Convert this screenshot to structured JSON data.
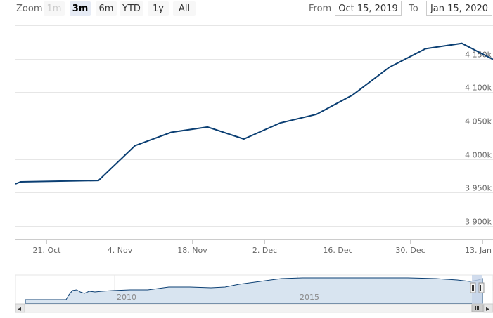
{
  "range_selector": {
    "zoom_label": "Zoom",
    "buttons": [
      {
        "label": "1m",
        "state": "disabled"
      },
      {
        "label": "3m",
        "state": "selected"
      },
      {
        "label": "6m",
        "state": "normal"
      },
      {
        "label": "YTD",
        "state": "normal"
      },
      {
        "label": "1y",
        "state": "normal"
      },
      {
        "label": "All",
        "state": "normal"
      }
    ],
    "from_label": "From",
    "from_value": "Oct 15, 2019",
    "to_label": "To",
    "to_value": "Jan 15, 2020"
  },
  "colors": {
    "series": "#0b3f73",
    "grid": "#e6e6e6",
    "axis_text": "#666666",
    "navigator_fill": "#d8e4f0",
    "navigator_mask": "#c6d3e8"
  },
  "chart_data": {
    "type": "line",
    "title": "",
    "xlabel": "",
    "ylabel": "",
    "ylim": [
      3880000,
      4200000
    ],
    "y_ticks": [
      3900000,
      3950000,
      4000000,
      4050000,
      4100000,
      4150000
    ],
    "y_tick_labels": [
      "3 900k",
      "3 950k",
      "4 000k",
      "4 050k",
      "4 100k",
      "4 150k"
    ],
    "x_range": [
      "2019-10-15",
      "2020-01-15"
    ],
    "x_ticks": [
      "2019-10-21",
      "2019-11-04",
      "2019-11-18",
      "2019-12-02",
      "2019-12-16",
      "2019-12-30",
      "2020-01-13"
    ],
    "x_tick_labels": [
      "21. Oct",
      "4. Nov",
      "18. Nov",
      "2. Dec",
      "16. Dec",
      "30. Dec",
      "13. Jan"
    ],
    "grid": true,
    "legend": "none",
    "series": [
      {
        "x": [
          "2019-10-15",
          "2019-10-16",
          "2019-10-31",
          "2019-11-07",
          "2019-11-14",
          "2019-11-21",
          "2019-11-28",
          "2019-12-05",
          "2019-12-12",
          "2019-12-19",
          "2019-12-26",
          "2020-01-02",
          "2020-01-09",
          "2020-01-15"
        ],
        "values": [
          3963000,
          3966000,
          3968000,
          4020000,
          4040000,
          4048000,
          4030000,
          4054000,
          4067000,
          4096000,
          4137000,
          4165000,
          4173000,
          4149000
        ]
      }
    ]
  },
  "navigator": {
    "tick_labels": [
      "2010",
      "2015"
    ],
    "left_arrow": "◂",
    "right_arrow": "▸"
  }
}
